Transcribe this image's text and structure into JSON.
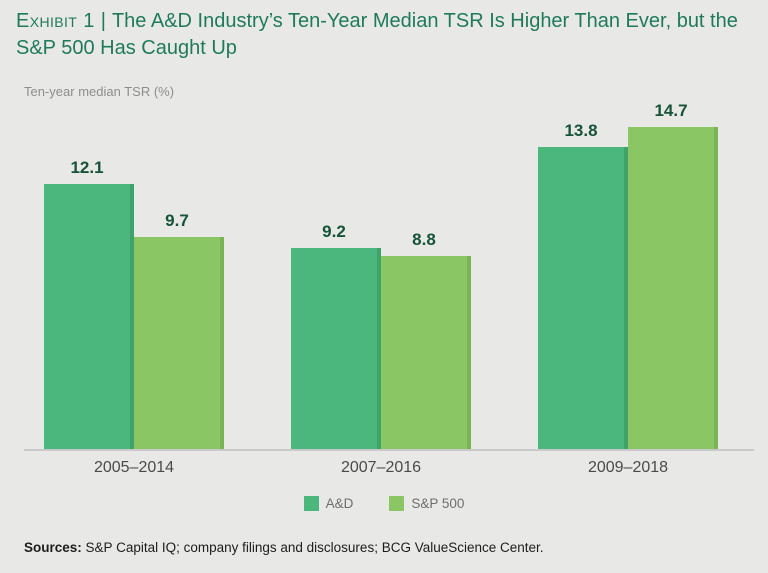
{
  "header": {
    "exhibit_label": "Exhibit 1",
    "separator": "|",
    "title_rest": "The A&D Industry’s Ten-Year Median TSR Is Higher Than Ever, but the S&P 500 Has Caught Up",
    "title_color": "#1f7a5c"
  },
  "chart_data": {
    "type": "bar",
    "title": "The A&D Industry’s Ten-Year Median TSR Is Higher Than Ever, but the S&P 500 Has Caught Up",
    "ylabel": "Ten-year median TSR (%)",
    "categories": [
      "2005–2014",
      "2007–2016",
      "2009–2018"
    ],
    "series": [
      {
        "name": "A&D",
        "color": "#4bb77c",
        "edge_color": "#3ea26a",
        "values": [
          12.1,
          9.2,
          13.8
        ]
      },
      {
        "name": "S&P 500",
        "color": "#8ac663",
        "edge_color": "#79b353",
        "values": [
          9.7,
          8.8,
          14.7
        ]
      }
    ],
    "ylim": [
      0,
      15
    ],
    "grid": false,
    "legend_position": "bottom",
    "value_label_color": "#165339",
    "value_labels_shown": true
  },
  "footer": {
    "sources_label": "Sources:",
    "sources_text": "S&P Capital IQ; company filings and disclosures; BCG ValueScience Center."
  }
}
